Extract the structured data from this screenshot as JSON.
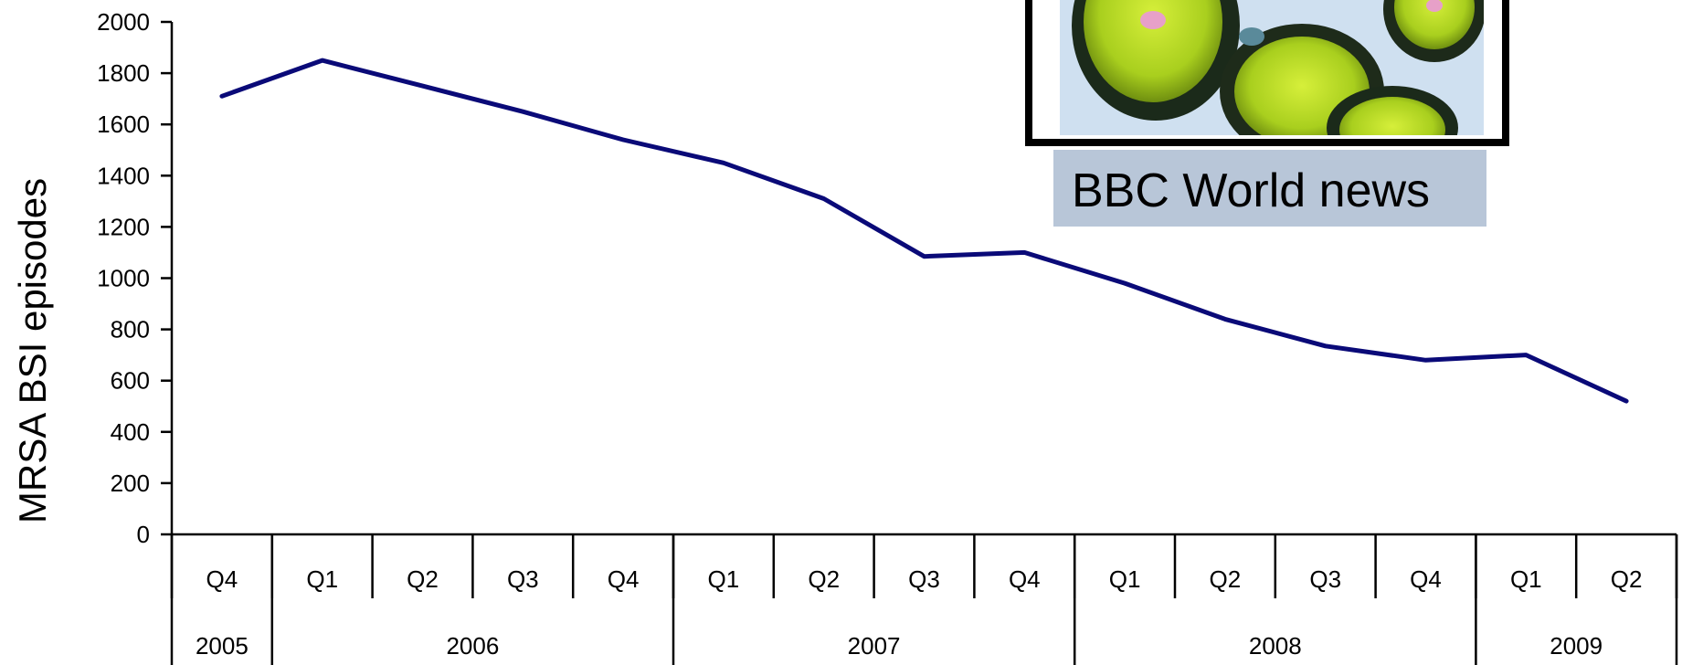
{
  "chart_data": {
    "type": "line",
    "title": "",
    "ylabel": "MRSA BSI episodes",
    "xlabel": "",
    "ylim": [
      0,
      2000
    ],
    "yticks": [
      0,
      200,
      400,
      600,
      800,
      1000,
      1200,
      1400,
      1600,
      1800,
      2000
    ],
    "categories": [
      "Q4",
      "Q1",
      "Q2",
      "Q3",
      "Q4",
      "Q1",
      "Q2",
      "Q3",
      "Q4",
      "Q1",
      "Q2",
      "Q3",
      "Q4",
      "Q1",
      "Q2"
    ],
    "year_groups": [
      {
        "label": "2005",
        "span": 1
      },
      {
        "label": "2006",
        "span": 4
      },
      {
        "label": "2007",
        "span": 4
      },
      {
        "label": "2008",
        "span": 4
      },
      {
        "label": "2009",
        "span": 2
      }
    ],
    "series": [
      {
        "values": [
          1710,
          1850,
          1750,
          1650,
          1540,
          1450,
          1310,
          1085,
          1100,
          980,
          840,
          735,
          680,
          700,
          520
        ],
        "color": "#0a0a78"
      }
    ],
    "grid": false,
    "legend": "none"
  },
  "inset": {
    "caption": "BBC World news",
    "image_icon": "bacteria-micrograph-image",
    "caption_bg": "#b8c6d8"
  }
}
